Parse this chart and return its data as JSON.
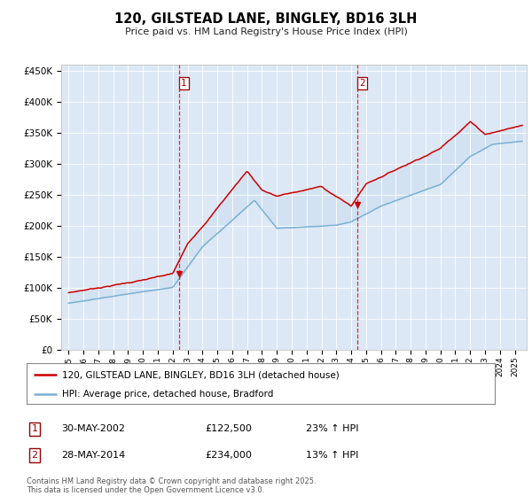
{
  "title": "120, GILSTEAD LANE, BINGLEY, BD16 3LH",
  "subtitle": "Price paid vs. HM Land Registry's House Price Index (HPI)",
  "background_color": "#ffffff",
  "plot_bg_color": "#dce8f5",
  "red_color": "#cc0000",
  "blue_color": "#7ab0d4",
  "sale1_year": 2002.41,
  "sale1_price": 122500,
  "sale1_date": "30-MAY-2002",
  "sale1_hpi_pct": "23% ↑ HPI",
  "sale2_year": 2014.41,
  "sale2_price": 234000,
  "sale2_date": "28-MAY-2014",
  "sale2_hpi_pct": "13% ↑ HPI",
  "ylim": [
    0,
    460000
  ],
  "xlim_start": 1994.5,
  "xlim_end": 2025.8,
  "legend1": "120, GILSTEAD LANE, BINGLEY, BD16 3LH (detached house)",
  "legend2": "HPI: Average price, detached house, Bradford",
  "footnote": "Contains HM Land Registry data © Crown copyright and database right 2025.\nThis data is licensed under the Open Government Licence v3.0.",
  "ytick_labels": [
    "£0",
    "£50K",
    "£100K",
    "£150K",
    "£200K",
    "£250K",
    "£300K",
    "£350K",
    "£400K",
    "£450K"
  ],
  "ytick_values": [
    0,
    50000,
    100000,
    150000,
    200000,
    250000,
    300000,
    350000,
    400000,
    450000
  ]
}
